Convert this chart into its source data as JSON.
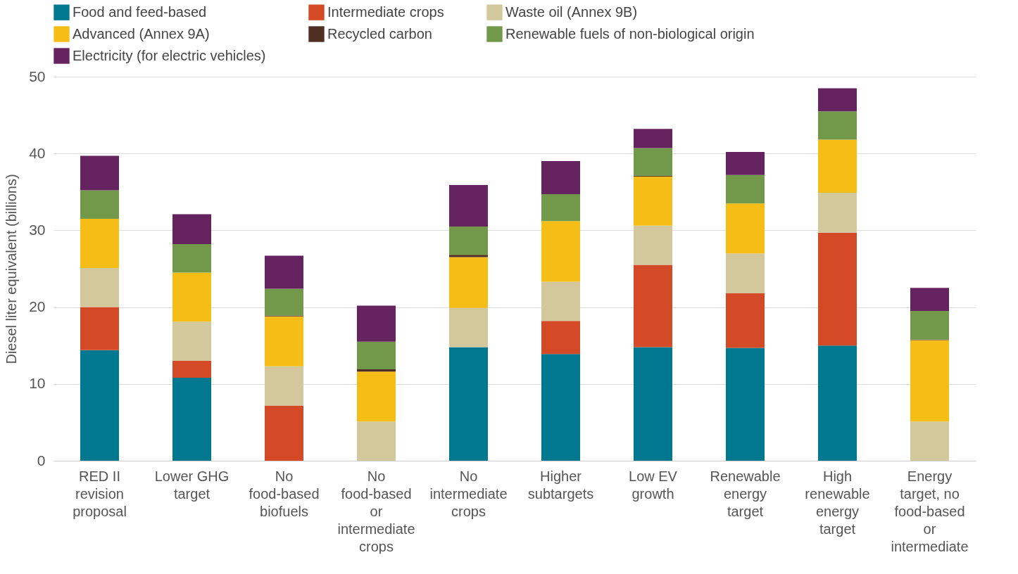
{
  "chart_data": {
    "type": "bar",
    "stacked": true,
    "ylabel": "Diesel liter equivalent (billions)",
    "categories": [
      "RED II revision proposal",
      "Lower GHG target",
      "No food-based biofuels",
      "No food-based or intermediate crops",
      "No intermediate crops",
      "Higher subtargets",
      "Low EV growth",
      "Renewable energy target",
      "High renewable energy target",
      "Energy target, no food-based or intermediate"
    ],
    "series": [
      {
        "name": "Food and feed-based",
        "color": "#00788f",
        "values": [
          14.4,
          10.8,
          0,
          0,
          14.8,
          13.9,
          14.8,
          14.7,
          15.0,
          0
        ]
      },
      {
        "name": "Intermediate crops",
        "color": "#d44a27",
        "values": [
          5.6,
          2.2,
          7.2,
          0,
          0,
          4.3,
          10.7,
          7.1,
          14.7,
          0
        ]
      },
      {
        "name": "Waste oil (Annex 9B)",
        "color": "#d3c79c",
        "values": [
          5.1,
          5.1,
          5.1,
          5.1,
          5.1,
          5.1,
          5.1,
          5.2,
          5.2,
          5.1
        ]
      },
      {
        "name": "Advanced (Annex 9A)",
        "color": "#f6bd16",
        "values": [
          6.4,
          6.4,
          6.5,
          6.5,
          6.6,
          7.9,
          6.4,
          6.5,
          6.9,
          10.6
        ]
      },
      {
        "name": "Recycled carbon",
        "color": "#4f2f22",
        "values": [
          0,
          0,
          0.1,
          0.3,
          0.3,
          0,
          0.1,
          0,
          0,
          0.1
        ]
      },
      {
        "name": "Renewable fuels of non-biological origin",
        "color": "#72994a",
        "values": [
          3.7,
          3.7,
          3.5,
          3.6,
          3.7,
          3.5,
          3.6,
          3.7,
          3.7,
          3.7
        ]
      },
      {
        "name": "Electricity (for electric vehicles)",
        "color": "#65235f",
        "values": [
          4.5,
          3.9,
          4.3,
          4.7,
          5.4,
          4.3,
          2.5,
          3.0,
          3.0,
          3.0
        ]
      }
    ],
    "ylim": [
      0,
      50
    ],
    "yticks": [
      0,
      10,
      20,
      30,
      40,
      50
    ],
    "grid": "y",
    "legend": "top left"
  }
}
